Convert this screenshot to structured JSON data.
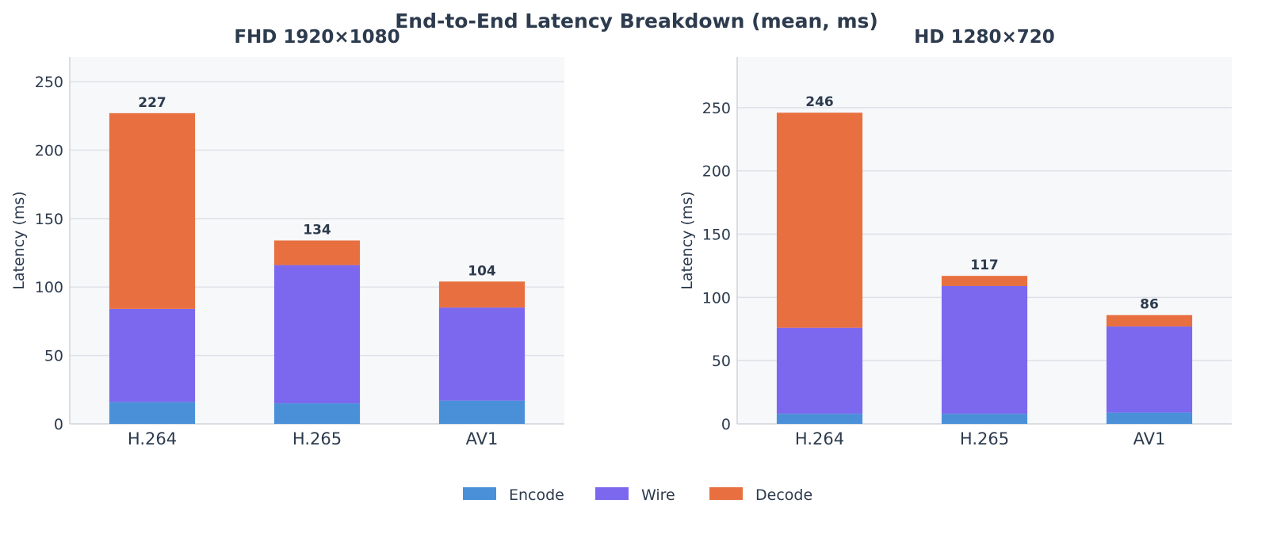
{
  "figure": {
    "suptitle": "End-to-End Latency Breakdown  (mean, ms)",
    "background": "#ffffff",
    "plot_background": "#f7f8fa",
    "grid_color": "#dde1e7",
    "text_color": "#2d3b4e"
  },
  "legend": {
    "placement": "bottom-center",
    "items": [
      {
        "name": "Encode",
        "color": "#4a90d9"
      },
      {
        "name": "Wire",
        "color": "#7b68ee"
      },
      {
        "name": "Decode",
        "color": "#e87040"
      }
    ]
  },
  "chart_data": [
    {
      "type": "bar",
      "stacked": true,
      "title": "FHD 1920×1080",
      "xlabel": "",
      "ylabel": "Latency (ms)",
      "ylim": [
        0,
        268
      ],
      "yticks": [
        0,
        50,
        100,
        150,
        200,
        250
      ],
      "grid": "y",
      "categories": [
        "H.264",
        "H.265",
        "AV1"
      ],
      "series": [
        {
          "name": "Encode",
          "values": [
            16,
            15,
            17
          ],
          "color": "#4a90d9"
        },
        {
          "name": "Wire",
          "values": [
            68,
            101,
            68
          ],
          "color": "#7b68ee"
        },
        {
          "name": "Decode",
          "values": [
            143,
            18,
            19
          ],
          "color": "#e87040"
        }
      ],
      "totals": [
        227,
        134,
        104
      ],
      "total_labels": [
        "227",
        "134",
        "104"
      ]
    },
    {
      "type": "bar",
      "stacked": true,
      "title": "HD 1280×720",
      "xlabel": "",
      "ylabel": "Latency (ms)",
      "ylim": [
        0,
        290
      ],
      "yticks": [
        0,
        50,
        100,
        150,
        200,
        250
      ],
      "grid": "y",
      "categories": [
        "H.264",
        "H.265",
        "AV1"
      ],
      "series": [
        {
          "name": "Encode",
          "values": [
            8,
            8,
            9
          ],
          "color": "#4a90d9"
        },
        {
          "name": "Wire",
          "values": [
            68,
            101,
            68
          ],
          "color": "#7b68ee"
        },
        {
          "name": "Decode",
          "values": [
            170,
            8,
            9
          ],
          "color": "#e87040"
        }
      ],
      "totals": [
        246,
        117,
        86
      ],
      "total_labels": [
        "246",
        "117",
        "86"
      ]
    }
  ]
}
